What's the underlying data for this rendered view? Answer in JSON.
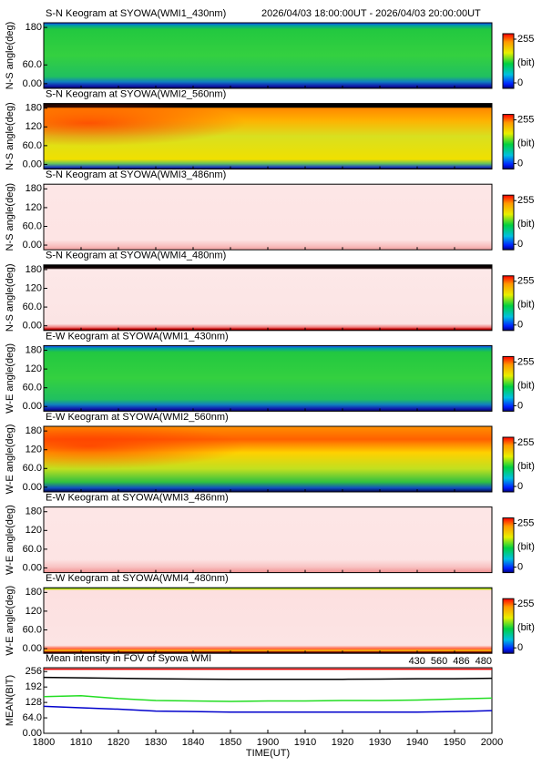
{
  "header": {
    "period": "2026/04/03 18:00:00UT - 2026/04/03 20:00:00UT"
  },
  "chart_data": [
    {
      "type": "heatmap",
      "title": "S-N Keogram at SYOWA(WMI1_430nm)",
      "ylabel": "N-S angle(deg)",
      "ylim": [
        -15,
        195
      ],
      "yticks": [
        {
          "value": 0,
          "label": "0.00"
        },
        {
          "value": 60,
          "label": "60.0"
        },
        180
      ],
      "colorbar": {
        "range": [
          0,
          255
        ],
        "ticks": [
          0,
          255
        ],
        "label": "(bit)"
      }
    },
    {
      "type": "heatmap",
      "title": "S-N Keogram at SYOWA(WMI2_560nm)",
      "ylabel": "N-S angle(deg)",
      "ylim": [
        -15,
        195
      ],
      "yticks": [
        {
          "value": 0,
          "label": "0.00"
        },
        {
          "value": 60,
          "label": "60.0"
        },
        120,
        180
      ],
      "colorbar": {
        "range": [
          0,
          255
        ],
        "ticks": [
          0,
          255
        ],
        "label": "(bit)"
      }
    },
    {
      "type": "heatmap",
      "title": "S-N Keogram at SYOWA(WMI3_486nm)",
      "ylabel": "N-S angle(deg)",
      "ylim": [
        -15,
        195
      ],
      "yticks": [
        {
          "value": 0,
          "label": "0.00"
        },
        {
          "value": 60,
          "label": "60.0"
        },
        120,
        180
      ],
      "colorbar": {
        "range": [
          0,
          255
        ],
        "ticks": [
          0,
          255
        ],
        "label": "(bit)"
      }
    },
    {
      "type": "heatmap",
      "title": "S-N Keogram at SYOWA(WMI4_480nm)",
      "ylabel": "N-S angle(deg)",
      "ylim": [
        -15,
        195
      ],
      "yticks": [
        {
          "value": 0,
          "label": "0.00"
        },
        {
          "value": 60,
          "label": "60.0"
        },
        120,
        180
      ],
      "colorbar": {
        "range": [
          0,
          255
        ],
        "ticks": [
          0,
          255
        ],
        "label": "(bit)"
      }
    },
    {
      "type": "heatmap",
      "title": "E-W Keogram at SYOWA(WMI1_430nm)",
      "ylabel": "W-E angle(deg)",
      "ylim": [
        -15,
        195
      ],
      "yticks": [
        {
          "value": 0,
          "label": "0.00"
        },
        {
          "value": 60,
          "label": "60.0"
        },
        120,
        180
      ],
      "colorbar": {
        "range": [
          0,
          255
        ],
        "ticks": [
          0,
          255
        ],
        "label": "(bit)"
      }
    },
    {
      "type": "heatmap",
      "title": "E-W Keogram at SYOWA(WMI2_560nm)",
      "ylabel": "W-E angle(deg)",
      "ylim": [
        -15,
        195
      ],
      "yticks": [
        {
          "value": 0,
          "label": "0.00"
        },
        {
          "value": 60,
          "label": "60.0"
        },
        120,
        180
      ],
      "colorbar": {
        "range": [
          0,
          255
        ],
        "ticks": [
          0,
          255
        ],
        "label": "(bit)"
      }
    },
    {
      "type": "heatmap",
      "title": "E-W Keogram at SYOWA(WMI3_486nm)",
      "ylabel": "W-E angle(deg)",
      "ylim": [
        -15,
        195
      ],
      "yticks": [
        {
          "value": 0,
          "label": "0.00"
        },
        {
          "value": 60,
          "label": "60.0"
        },
        120,
        180
      ],
      "colorbar": {
        "range": [
          0,
          255
        ],
        "ticks": [
          0,
          255
        ],
        "label": "(bit)"
      }
    },
    {
      "type": "heatmap",
      "title": "E-W Keogram at SYOWA(WMI4_480nm)",
      "ylabel": "W-E angle(deg)",
      "ylim": [
        -15,
        195
      ],
      "yticks": [
        {
          "value": 0,
          "label": "0.00"
        },
        {
          "value": 60,
          "label": "60.0"
        },
        120,
        180
      ],
      "colorbar": {
        "range": [
          0,
          255
        ],
        "ticks": [
          0,
          255
        ],
        "label": "(bit)"
      }
    },
    {
      "type": "line",
      "title": "Mean intensity in FOV of Syowa WMI",
      "xlabel": "TIME(UT)",
      "ylabel": "MEAN(BIT)",
      "x": [
        0,
        10,
        20,
        30,
        40,
        50,
        60,
        70,
        80,
        90,
        100,
        110,
        120
      ],
      "xlim": [
        0,
        120
      ],
      "xticks": [
        {
          "value": 0,
          "label": "1800"
        },
        {
          "value": 10,
          "label": "1810"
        },
        {
          "value": 20,
          "label": "1820"
        },
        {
          "value": 30,
          "label": "1830"
        },
        {
          "value": 40,
          "label": "1840"
        },
        {
          "value": 50,
          "label": "1850"
        },
        {
          "value": 60,
          "label": "1900"
        },
        {
          "value": 70,
          "label": "1910"
        },
        {
          "value": 80,
          "label": "1920"
        },
        {
          "value": 90,
          "label": "1930"
        },
        {
          "value": 100,
          "label": "1940"
        },
        {
          "value": 110,
          "label": "1950"
        },
        {
          "value": 120,
          "label": "2000"
        }
      ],
      "ylim": [
        0,
        272
      ],
      "yticks": [
        {
          "value": 0,
          "label": "0.00"
        },
        {
          "value": 64,
          "label": "64.0"
        },
        128,
        192,
        256
      ],
      "legend": "top-right",
      "series": [
        {
          "name": "430",
          "color": "#0000cc",
          "values": [
            112,
            106,
            100,
            92,
            90,
            88,
            88,
            88,
            88,
            88,
            88,
            90,
            94
          ]
        },
        {
          "name": "560",
          "color": "#22dd22",
          "values": [
            152,
            156,
            144,
            136,
            134,
            132,
            134,
            134,
            136,
            136,
            138,
            142,
            146
          ]
        },
        {
          "name": "486",
          "color": "#ee0000",
          "values": [
            266,
            266,
            266,
            266,
            266,
            266,
            266,
            266,
            266,
            266,
            266,
            266,
            266
          ]
        },
        {
          "name": "480",
          "color": "#000000",
          "values": [
            232,
            230,
            228,
            226,
            225,
            224,
            224,
            224,
            224,
            225,
            226,
            226,
            228
          ]
        }
      ]
    }
  ]
}
